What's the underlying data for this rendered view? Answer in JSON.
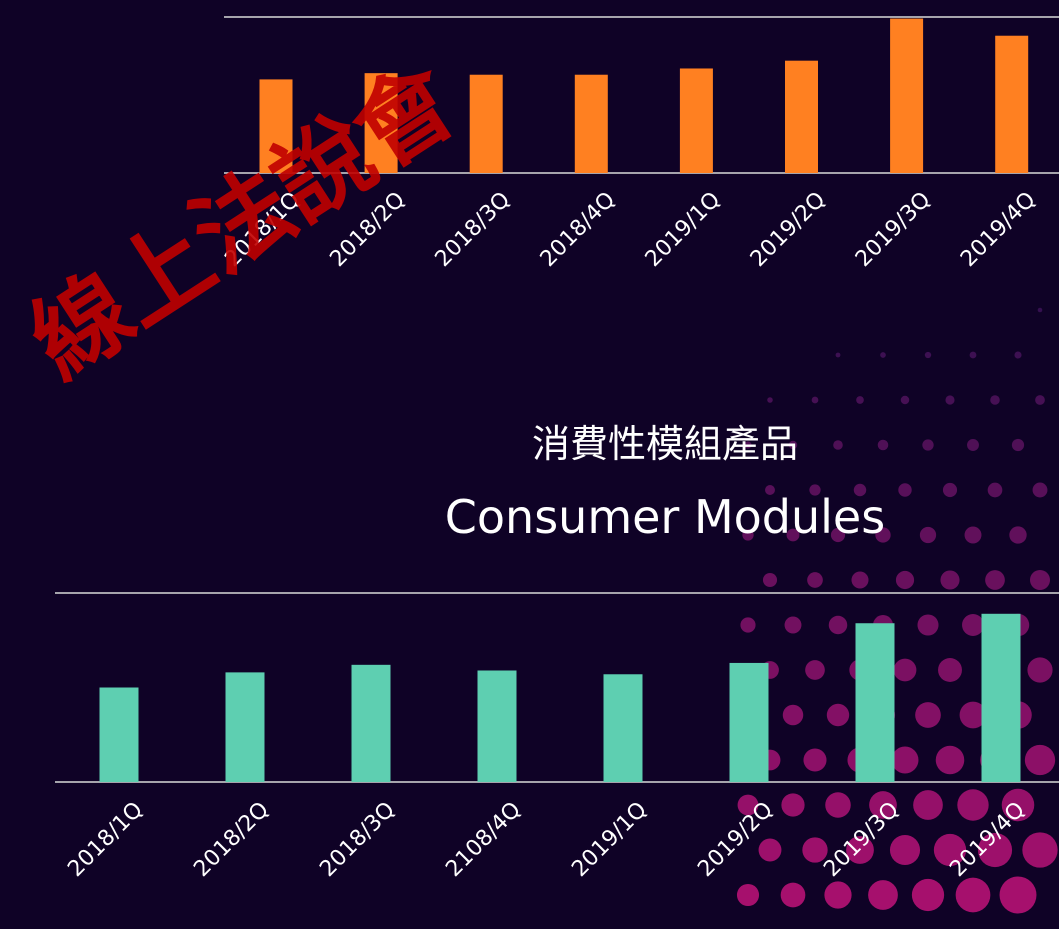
{
  "watermark": "線上法說會",
  "chart_data": [
    {
      "type": "bar",
      "color": "#ff8021",
      "categories": [
        "2018/1Q",
        "2018/2Q",
        "2018/3Q",
        "2018/4Q",
        "2019/1Q",
        "2019/2Q",
        "2019/3Q",
        "2019/4Q"
      ],
      "values": [
        60,
        64,
        63,
        63,
        67,
        72,
        99,
        88
      ],
      "ylim": [
        0,
        100
      ]
    },
    {
      "type": "bar",
      "color": "#5ecfb1",
      "title": "消費性模組產品",
      "subtitle": "Consumer Modules",
      "categories": [
        "2018/1Q",
        "2018/2Q",
        "2018/3Q",
        "2108/4Q",
        "2019/1Q",
        "2019/2Q",
        "2019/3Q",
        "2019/4Q"
      ],
      "values": [
        50,
        58,
        62,
        59,
        57,
        63,
        84,
        89
      ],
      "ylim": [
        0,
        100
      ]
    }
  ]
}
